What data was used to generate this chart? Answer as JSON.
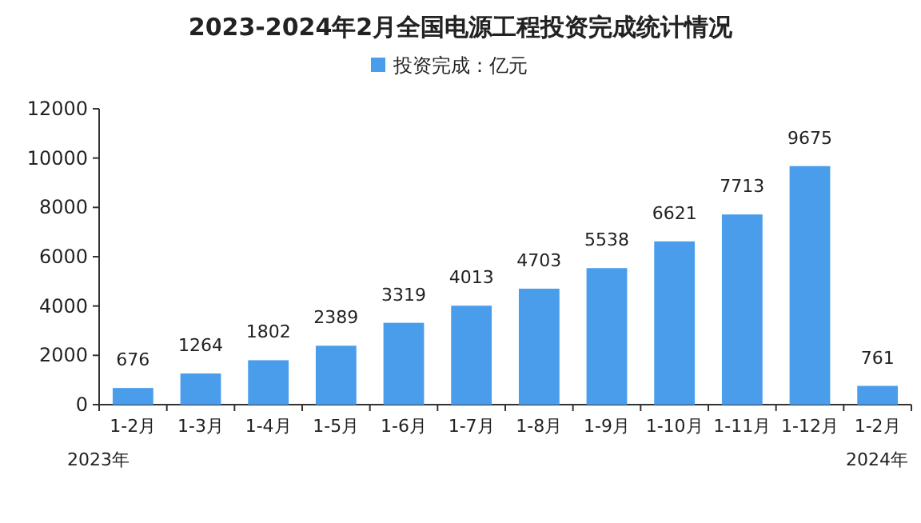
{
  "chart_data": {
    "type": "bar",
    "title": "2023-2024年2月全国电源工程投资完成统计情况",
    "categories": [
      "1-2月",
      "1-3月",
      "1-4月",
      "1-5月",
      "1-6月",
      "1-7月",
      "1-8月",
      "1-9月",
      "1-10月",
      "1-11月",
      "1-12月",
      "1-2月"
    ],
    "series": [
      {
        "name": "投资完成：亿元",
        "color": "#4a9deb",
        "values": [
          676,
          1264,
          1802,
          2389,
          3319,
          4013,
          4703,
          5538,
          6621,
          7713,
          9675,
          761
        ]
      }
    ],
    "ylim": [
      0,
      12000
    ],
    "yticks": [
      0,
      2000,
      4000,
      6000,
      8000,
      10000,
      12000
    ],
    "data_labels": true,
    "legend": "top",
    "grid": false,
    "annotations": [
      "2023年",
      "2024年"
    ]
  }
}
